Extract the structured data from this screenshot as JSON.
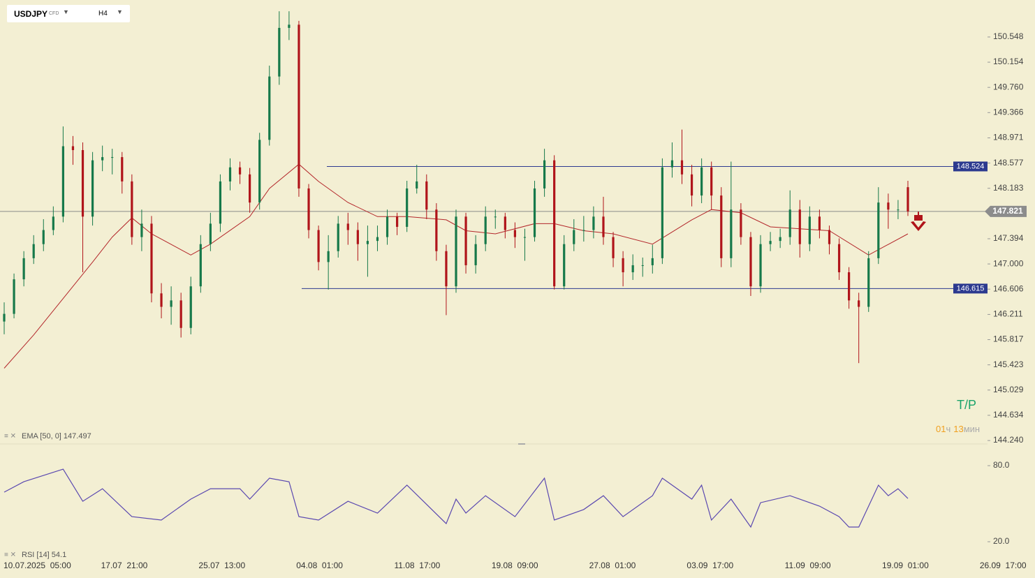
{
  "header": {
    "symbol": "USDJPY",
    "instrument_type": "CFD",
    "timeframe": "H4"
  },
  "chart_data": [
    {
      "type": "candlestick",
      "up_color": "#16794a",
      "down_color": "#b0141a",
      "open": [
        146.1,
        146.22,
        146.76,
        147.09,
        147.31,
        147.53,
        147.74,
        148.84,
        148.78,
        147.74,
        148.62,
        148.67,
        148.67,
        148.29,
        147.42,
        147.63,
        146.54,
        146.33,
        146.43,
        146.0,
        146.65,
        147.31,
        147.63,
        148.29,
        148.51,
        148.4,
        147.96,
        148.94,
        149.93,
        150.69,
        150.74,
        148.18,
        147.53,
        147.03,
        147.2,
        147.63,
        147.53,
        147.31,
        147.36,
        147.42,
        147.74,
        147.58,
        148.18,
        148.29,
        147.85,
        147.2,
        146.65,
        147.74,
        146.98,
        147.31,
        147.74,
        147.74,
        147.53,
        147.42,
        147.42,
        148.18,
        148.62,
        146.65,
        147.31,
        147.53,
        147.53,
        147.74,
        147.42,
        147.09,
        146.87,
        146.98,
        146.98,
        147.09,
        148.51,
        148.62,
        148.4,
        148.07,
        148.51,
        148.07,
        147.09,
        147.85,
        147.42,
        146.65,
        147.31,
        147.36,
        147.42,
        147.85,
        147.31,
        147.74,
        147.53,
        147.31,
        146.87,
        146.43,
        146.33,
        147.09,
        147.96,
        147.85,
        148.2
      ],
      "high": [
        146.4,
        146.85,
        147.2,
        147.45,
        147.7,
        147.9,
        149.15,
        149.0,
        148.9,
        148.75,
        148.85,
        148.8,
        148.75,
        148.4,
        147.85,
        147.75,
        146.7,
        146.65,
        146.55,
        146.8,
        147.45,
        147.8,
        148.4,
        148.65,
        148.6,
        148.5,
        149.05,
        150.1,
        150.95,
        150.95,
        150.8,
        148.25,
        147.6,
        147.45,
        147.75,
        147.8,
        147.65,
        147.6,
        147.6,
        147.85,
        147.8,
        148.3,
        148.55,
        148.4,
        147.95,
        147.3,
        147.85,
        147.8,
        147.45,
        147.9,
        147.85,
        147.8,
        147.65,
        147.55,
        148.3,
        148.8,
        148.7,
        147.45,
        147.7,
        147.75,
        147.9,
        148.05,
        147.5,
        147.2,
        147.15,
        147.1,
        147.3,
        148.65,
        148.9,
        149.1,
        148.55,
        148.65,
        148.6,
        148.2,
        148.6,
        147.95,
        147.5,
        147.45,
        147.5,
        147.55,
        148.15,
        148.0,
        147.9,
        147.85,
        147.6,
        147.4,
        146.95,
        146.55,
        147.2,
        148.2,
        148.1,
        148.0,
        148.3
      ],
      "low": [
        145.9,
        146.15,
        146.65,
        147.0,
        147.2,
        147.45,
        147.65,
        148.55,
        146.87,
        147.6,
        148.45,
        148.4,
        148.1,
        147.3,
        147.2,
        146.4,
        146.15,
        146.05,
        145.85,
        145.9,
        146.55,
        147.2,
        147.5,
        148.15,
        148.25,
        147.8,
        147.85,
        148.85,
        149.8,
        150.5,
        148.05,
        147.4,
        146.9,
        146.6,
        147.1,
        147.3,
        147.05,
        146.8,
        147.2,
        147.3,
        147.45,
        147.5,
        148.1,
        147.7,
        147.05,
        146.2,
        146.55,
        146.85,
        146.85,
        147.2,
        147.55,
        147.4,
        147.25,
        147.05,
        147.35,
        148.05,
        146.6,
        146.6,
        147.2,
        147.35,
        147.4,
        147.3,
        146.95,
        146.65,
        146.75,
        146.8,
        146.85,
        147.0,
        148.35,
        148.25,
        147.9,
        147.95,
        147.85,
        146.95,
        146.95,
        147.3,
        146.5,
        146.55,
        147.2,
        147.25,
        147.3,
        147.1,
        147.2,
        147.4,
        147.15,
        146.75,
        146.3,
        145.45,
        146.25,
        147.0,
        147.55,
        147.7,
        147.75
      ],
      "close": [
        146.22,
        146.76,
        147.09,
        147.31,
        147.53,
        147.74,
        148.84,
        148.78,
        147.74,
        148.62,
        148.67,
        148.67,
        148.29,
        147.42,
        147.63,
        146.54,
        146.33,
        146.43,
        146.0,
        146.65,
        147.31,
        147.63,
        148.29,
        148.51,
        148.4,
        147.96,
        148.94,
        149.93,
        150.69,
        150.74,
        148.18,
        147.53,
        147.03,
        147.2,
        147.63,
        147.53,
        147.31,
        147.36,
        147.42,
        147.74,
        147.58,
        148.18,
        148.29,
        147.85,
        147.2,
        146.65,
        147.74,
        146.98,
        147.31,
        147.74,
        147.74,
        147.53,
        147.42,
        147.42,
        148.18,
        148.62,
        146.65,
        147.31,
        147.53,
        147.53,
        147.74,
        147.42,
        147.09,
        146.87,
        146.98,
        146.98,
        147.09,
        148.51,
        148.62,
        148.4,
        148.07,
        148.51,
        148.07,
        147.09,
        147.85,
        147.42,
        146.65,
        147.31,
        147.36,
        147.42,
        147.85,
        147.31,
        147.74,
        147.53,
        147.31,
        146.87,
        146.43,
        146.33,
        147.09,
        147.96,
        147.85,
        147.85,
        147.821
      ],
      "ema": {
        "legend": "EMA [50, 0] 147.497",
        "color": "#b3262a",
        "x": [
          0,
          3,
          7,
          9,
          11,
          13,
          15,
          19,
          21,
          25,
          27,
          30,
          32,
          35,
          38,
          41,
          45,
          47,
          50,
          54,
          56,
          59,
          62,
          66,
          70,
          72,
          75,
          78,
          84,
          88,
          92
        ],
        "values": [
          145.37,
          145.89,
          146.65,
          147.03,
          147.42,
          147.72,
          147.47,
          147.14,
          147.31,
          147.74,
          148.18,
          148.56,
          148.29,
          147.96,
          147.74,
          147.74,
          147.69,
          147.52,
          147.47,
          147.63,
          147.63,
          147.52,
          147.47,
          147.31,
          147.69,
          147.85,
          147.8,
          147.58,
          147.52,
          147.14,
          147.47
        ]
      },
      "ylim": [
        144.186,
        151.126
      ],
      "yticks": [
        150.548,
        150.154,
        {
          "value": 149.76,
          "label": "149.760"
        },
        149.366,
        148.971,
        148.577,
        148.183,
        147.394,
        {
          "value": 147.0,
          "label": "147.000"
        },
        146.606,
        146.211,
        145.817,
        145.423,
        145.029,
        144.634,
        {
          "value": 144.24,
          "label": "144.240"
        }
      ],
      "grid": false,
      "levels": [
        148.524,
        146.615
      ],
      "level_color": "#2c3a8f",
      "last_price": 147.821,
      "last_price_color": "#8c8c8c"
    },
    {
      "type": "line",
      "legend": "RSI [14] 54.1",
      "color": "#5a48b0",
      "x": [
        0,
        2,
        6,
        8,
        10,
        13,
        16,
        19,
        21,
        24,
        25,
        27,
        29,
        30,
        32,
        35,
        38,
        41,
        45,
        46,
        47,
        49,
        52,
        55,
        56,
        59,
        61,
        63,
        66,
        67,
        70,
        71,
        72,
        74,
        76,
        77,
        80,
        83,
        85,
        86,
        87,
        89,
        90,
        91,
        92
      ],
      "values": [
        59.1,
        67.3,
        77.2,
        51.9,
        61.8,
        39.8,
        37.1,
        53.6,
        61.8,
        61.8,
        53.6,
        70.1,
        67.3,
        39.8,
        37.1,
        51.9,
        42.6,
        64.6,
        34.3,
        53.6,
        42.6,
        56.3,
        39.8,
        70.1,
        37.1,
        45.4,
        56.3,
        39.8,
        56.3,
        70.1,
        53.6,
        64.6,
        37.1,
        53.6,
        31.6,
        50.8,
        56.3,
        48.1,
        39.8,
        31.6,
        31.6,
        64.6,
        56.3,
        61.8,
        54.1
      ],
      "ylim": [
        6.8,
        97.1
      ],
      "yticks": [
        {
          "value": 80,
          "label": "80.0"
        },
        {
          "value": 20,
          "label": "20.0"
        }
      ],
      "grid": false
    }
  ],
  "time_axis": [
    "10.07.2025  05:00",
    "17.07  21:00",
    "25.07  13:00",
    "04.08  01:00",
    "11.08  17:00",
    "19.08  09:00",
    "27.08  01:00",
    "03.09  17:00",
    "11.09  09:00",
    "19.09  01:00",
    "26.09  17:00"
  ],
  "take_profit_label": "T/P",
  "timer": {
    "hours": "01",
    "hours_unit": "ч",
    "minutes": "13",
    "minutes_unit": "мин"
  }
}
